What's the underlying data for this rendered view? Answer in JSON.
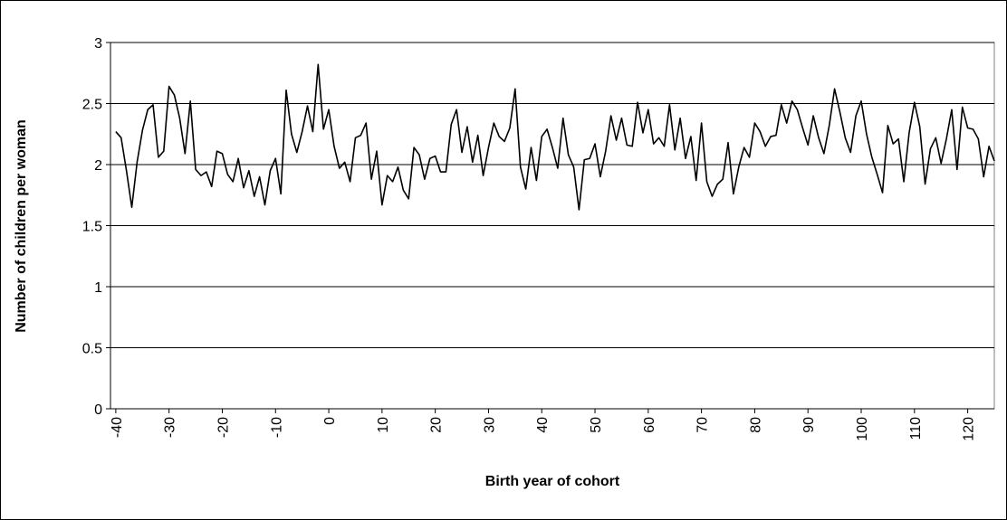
{
  "chart_data": {
    "type": "line",
    "x_label": "Birth year of cohort",
    "y_label": "Number of children per woman",
    "x": [
      -40,
      -39,
      -38,
      -37,
      -36,
      -35,
      -34,
      -33,
      -32,
      -31,
      -30,
      -29,
      -28,
      -27,
      -26,
      -25,
      -24,
      -23,
      -22,
      -21,
      -20,
      -19,
      -18,
      -17,
      -16,
      -15,
      -14,
      -13,
      -12,
      -11,
      -10,
      -9,
      -8,
      -7,
      -6,
      -5,
      -4,
      -3,
      -2,
      -1,
      0,
      1,
      2,
      3,
      4,
      5,
      6,
      7,
      8,
      9,
      10,
      11,
      12,
      13,
      14,
      15,
      16,
      17,
      18,
      19,
      20,
      21,
      22,
      23,
      24,
      25,
      26,
      27,
      28,
      29,
      30,
      31,
      32,
      33,
      34,
      35,
      36,
      37,
      38,
      39,
      40,
      41,
      42,
      43,
      44,
      45,
      46,
      47,
      48,
      49,
      50,
      51,
      52,
      53,
      54,
      55,
      56,
      57,
      58,
      59,
      60,
      61,
      62,
      63,
      64,
      65,
      66,
      67,
      68,
      69,
      70,
      71,
      72,
      73,
      74,
      75,
      76,
      77,
      78,
      79,
      80,
      81,
      82,
      83,
      84,
      85,
      86,
      87,
      88,
      89,
      90,
      91,
      92,
      93,
      94,
      95,
      96,
      97,
      98,
      99,
      100,
      101,
      102,
      103,
      104,
      105,
      106,
      107,
      108,
      109,
      110,
      111,
      112,
      113,
      114,
      115,
      116,
      117,
      118,
      119,
      120,
      121,
      122,
      123,
      124,
      125
    ],
    "series": [
      {
        "color": "#000000",
        "values": [
          2.27,
          2.22,
          1.95,
          1.65,
          2.02,
          2.28,
          2.45,
          2.49,
          2.06,
          2.11,
          2.64,
          2.57,
          2.38,
          2.09,
          2.52,
          1.96,
          1.91,
          1.94,
          1.82,
          2.11,
          2.09,
          1.92,
          1.86,
          2.05,
          1.81,
          1.95,
          1.74,
          1.9,
          1.67,
          1.95,
          2.05,
          1.76,
          2.61,
          2.25,
          2.1,
          2.27,
          2.48,
          2.27,
          2.82,
          2.29,
          2.45,
          2.15,
          1.97,
          2.02,
          1.86,
          2.22,
          2.24,
          2.34,
          1.88,
          2.11,
          1.67,
          1.91,
          1.86,
          1.98,
          1.79,
          1.72,
          2.14,
          2.08,
          1.88,
          2.05,
          2.07,
          1.94,
          1.94,
          2.33,
          2.45,
          2.1,
          2.31,
          2.02,
          2.24,
          1.91,
          2.14,
          2.34,
          2.23,
          2.19,
          2.3,
          2.62,
          1.98,
          1.8,
          2.14,
          1.87,
          2.23,
          2.29,
          2.14,
          1.97,
          2.38,
          2.08,
          1.98,
          1.63,
          2.04,
          2.05,
          2.17,
          1.9,
          2.11,
          2.4,
          2.2,
          2.38,
          2.16,
          2.15,
          2.51,
          2.26,
          2.45,
          2.17,
          2.22,
          2.15,
          2.49,
          2.12,
          2.38,
          2.05,
          2.23,
          1.87,
          2.34,
          1.86,
          1.74,
          1.84,
          1.88,
          2.18,
          1.76,
          1.98,
          2.14,
          2.06,
          2.34,
          2.27,
          2.15,
          2.23,
          2.24,
          2.49,
          2.34,
          2.52,
          2.45,
          2.3,
          2.16,
          2.4,
          2.22,
          2.09,
          2.32,
          2.62,
          2.43,
          2.22,
          2.1,
          2.4,
          2.52,
          2.25,
          2.06,
          1.92,
          1.77,
          2.32,
          2.17,
          2.21,
          1.86,
          2.26,
          2.51,
          2.31,
          1.84,
          2.13,
          2.22,
          2.01,
          2.21,
          2.45,
          1.96,
          2.47,
          2.3,
          2.29,
          2.21,
          1.9,
          2.15,
          2.03
        ]
      }
    ],
    "xlim": [
      -41,
      125
    ],
    "xticks": [
      -40,
      -30,
      -20,
      -10,
      0,
      10,
      20,
      30,
      40,
      50,
      60,
      70,
      80,
      90,
      100,
      110,
      120
    ],
    "ylim": [
      0,
      3
    ],
    "yticks": [
      0,
      0.5,
      1,
      1.5,
      2,
      2.5,
      3
    ],
    "grid": true
  }
}
